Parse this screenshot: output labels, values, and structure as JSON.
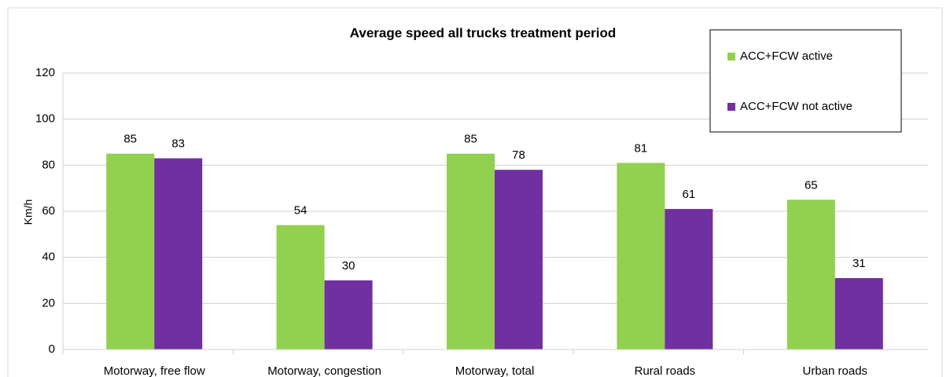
{
  "chart_data": {
    "type": "bar",
    "title": "Average speed all trucks treatment period",
    "y_label": "Km/h",
    "categories": [
      "Motorway, free flow",
      "Motorway, congestion",
      "Motorway, total",
      "Rural roads",
      "Urban roads"
    ],
    "series": [
      {
        "name": "ACC+FCW active",
        "color": "#92d050",
        "values": [
          85,
          54,
          85,
          81,
          65
        ]
      },
      {
        "name": "ACC+FCW not active",
        "color": "#7030a0",
        "values": [
          83,
          30,
          78,
          61,
          31
        ]
      }
    ],
    "ylim": [
      0,
      120
    ],
    "yticks": [
      0,
      20,
      40,
      60,
      80,
      100,
      120
    ],
    "grid": true,
    "legend": "upper right"
  }
}
